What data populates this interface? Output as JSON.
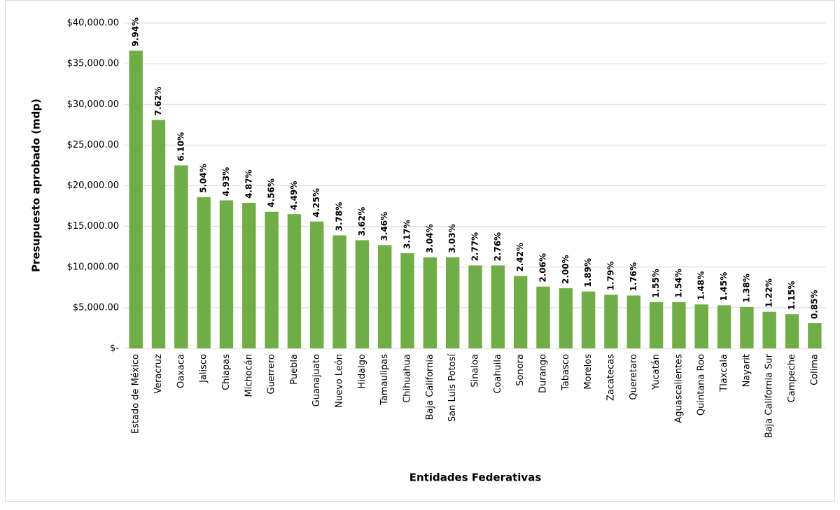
{
  "chart_data": {
    "type": "bar",
    "y_label": "Presupuesto aprobado (mdp)",
    "x_label": "Entidades Federativas",
    "categories": [
      "Estado de México",
      "Veracruz",
      "Oaxaca",
      "Jalisco",
      "Chiapas",
      "Michocán",
      "Guerrero",
      "Puebla",
      "Guanajuato",
      "Nuevo León",
      "Hidalgo",
      "Tamaulipas",
      "Chihuahua",
      "Baja California",
      "San Luis Potosí",
      "Sinaloa",
      "Coahuila",
      "Sonora",
      "Durango",
      "Tabasco",
      "Morelos",
      "Zacatecas",
      "Queretaro",
      "Yucatán",
      "Aguascalientes",
      "Quintana Roo",
      "Tlaxcala",
      "Nayarit",
      "Baja California Sur",
      "Campeche",
      "Colima"
    ],
    "values": [
      36600,
      28100,
      22500,
      18600,
      18200,
      17900,
      16800,
      16500,
      15600,
      13900,
      13300,
      12700,
      11700,
      11200,
      11200,
      10200,
      10200,
      8900,
      7600,
      7400,
      7000,
      6600,
      6500,
      5700,
      5700,
      5400,
      5300,
      5100,
      4500,
      4200,
      3100
    ],
    "share_labels": [
      "9.94%",
      "7.62%",
      "6.10%",
      "5.04%",
      "4.93%",
      "4.87%",
      "4.56%",
      "4.49%",
      "4.25%",
      "3.78%",
      "3.62%",
      "3.46%",
      "3.17%",
      "3.04%",
      "3.03%",
      "2.77%",
      "2.76%",
      "2.42%",
      "2.06%",
      "2.00%",
      "1.89%",
      "1.79%",
      "1.76%",
      "1.55%",
      "1.54%",
      "1.48%",
      "1.45%",
      "1.38%",
      "1.22%",
      "1.15%",
      "0.85%"
    ],
    "color": "#70ad47",
    "ylim": [
      0,
      40000
    ],
    "yticks": [
      {
        "value": 0,
        "label": "$-"
      },
      {
        "value": 5000,
        "label": "$5,000.00"
      },
      {
        "value": 10000,
        "label": "$10,000.00"
      },
      {
        "value": 15000,
        "label": "$15,000.00"
      },
      {
        "value": 20000,
        "label": "$20,000.00"
      },
      {
        "value": 25000,
        "label": "$25,000.00"
      },
      {
        "value": 30000,
        "label": "$30,000.00"
      },
      {
        "value": 35000,
        "label": "$35,000.00"
      },
      {
        "value": 40000,
        "label": "$40,000.00"
      }
    ],
    "grid": true
  }
}
